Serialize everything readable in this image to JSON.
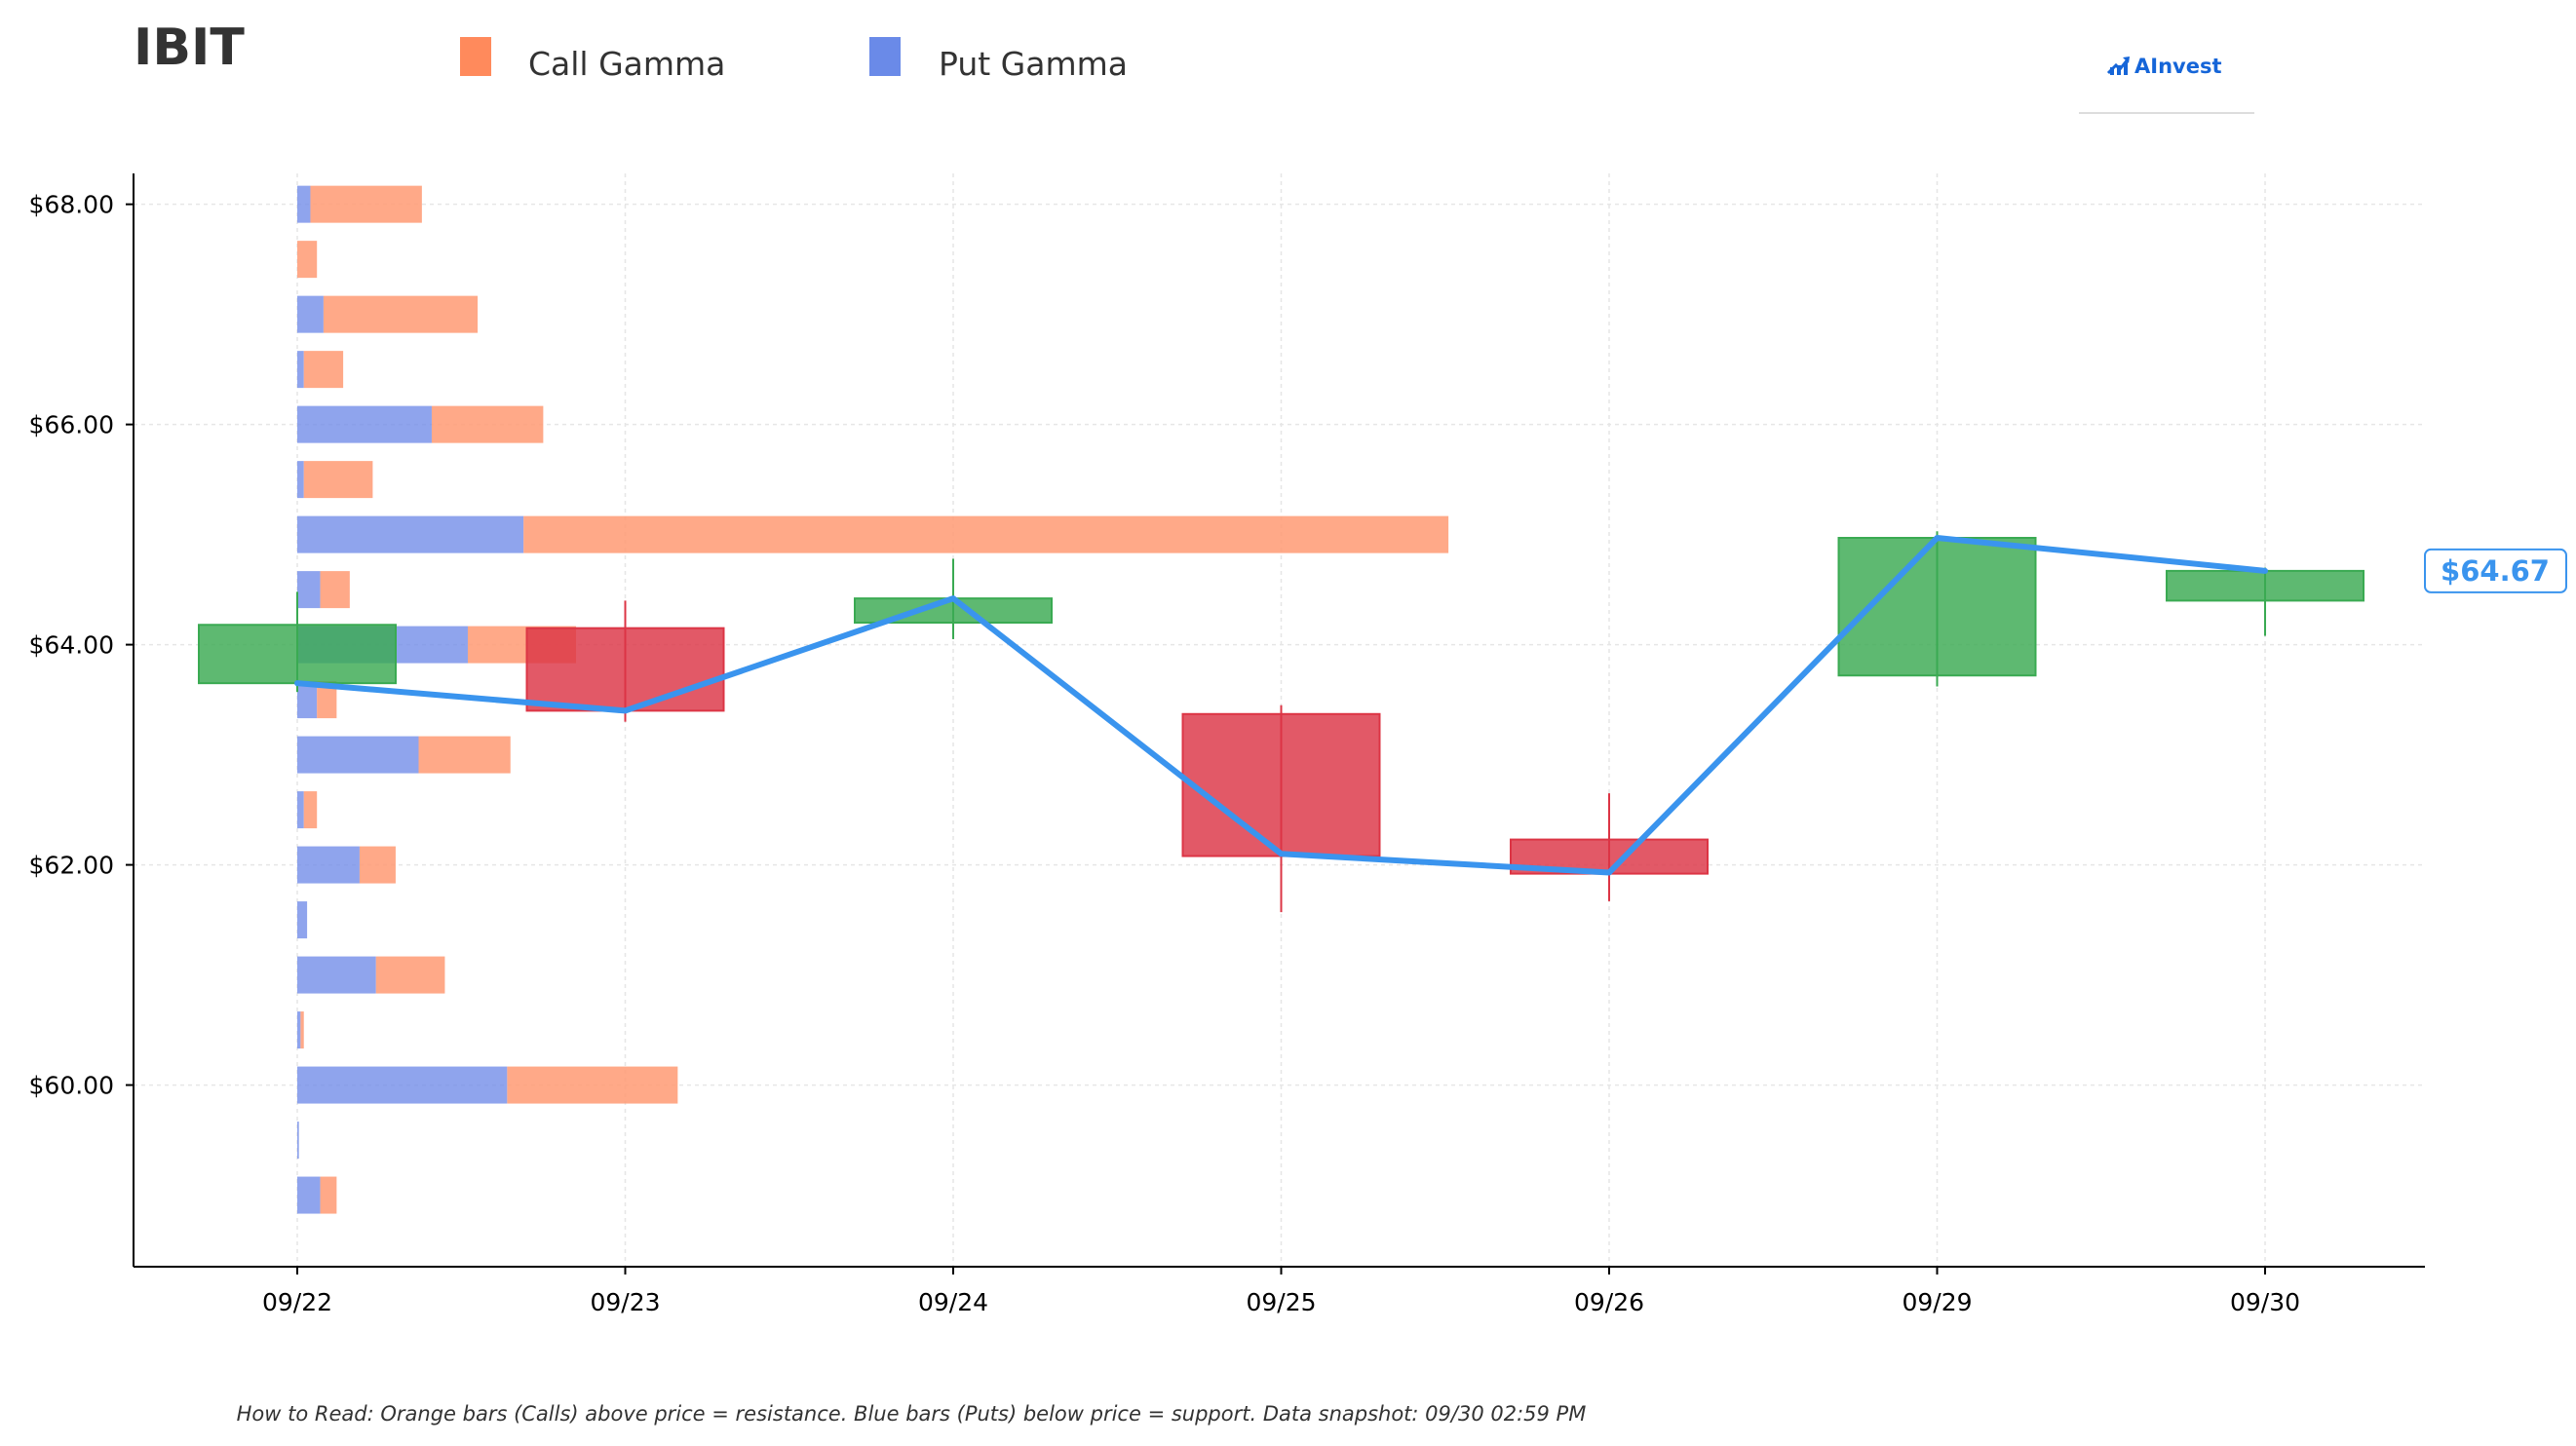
{
  "colors": {
    "call": "#ff9a73",
    "put": "#6f8be8",
    "up": "#3aaa52",
    "down": "#dc3545",
    "price_line": "#3a94ee",
    "axis": "#000000",
    "grid": "#e6e6e6",
    "title": "#333333",
    "logo": "#1565d8"
  },
  "header": {
    "ticker": "IBIT",
    "logo_text": "AInvest",
    "logo_icon": "chart-up-icon"
  },
  "legend": {
    "items": [
      {
        "key": "call",
        "label": "Call Gamma"
      },
      {
        "key": "put",
        "label": "Put Gamma"
      }
    ]
  },
  "footer": {
    "note": "How to Read: Orange bars (Calls) above price = resistance. Blue bars (Puts) below price = support. Data snapshot: 09/30 02:59 PM"
  },
  "chart_data": {
    "type": "candlestick+gamma-bars+line",
    "ylim": [
      58.35,
      68.28
    ],
    "y_ticks": [
      60,
      62,
      64,
      66,
      68
    ],
    "y_tick_labels": [
      "$60.00",
      "$62.00",
      "$64.00",
      "$66.00",
      "$68.00"
    ],
    "x_labels": [
      "09/22",
      "09/23",
      "09/24",
      "09/25",
      "09/26",
      "09/29",
      "09/30"
    ],
    "grid": true,
    "last_price_label": "$64.67",
    "candles": [
      {
        "date": "09/22",
        "open": 63.65,
        "high": 64.48,
        "low": 63.57,
        "close": 64.18
      },
      {
        "date": "09/23",
        "open": 64.15,
        "high": 64.4,
        "low": 63.3,
        "close": 63.4
      },
      {
        "date": "09/24",
        "open": 64.2,
        "high": 64.78,
        "low": 64.05,
        "close": 64.42
      },
      {
        "date": "09/25",
        "open": 63.37,
        "high": 63.45,
        "low": 61.57,
        "close": 62.08
      },
      {
        "date": "09/26",
        "open": 62.23,
        "high": 62.65,
        "low": 61.67,
        "close": 61.92
      },
      {
        "date": "09/29",
        "open": 63.72,
        "high": 65.03,
        "low": 63.62,
        "close": 64.97
      },
      {
        "date": "09/30",
        "open": 64.4,
        "high": 64.7,
        "low": 64.08,
        "close": 64.67
      }
    ],
    "price_line": {
      "x": [
        "09/22",
        "09/23",
        "09/24",
        "09/25",
        "09/26",
        "09/29",
        "09/30"
      ],
      "y": [
        63.65,
        63.4,
        64.42,
        62.1,
        61.93,
        64.97,
        64.67
      ]
    },
    "gamma_bar_units_per_day": 1.0,
    "gamma_bars": [
      {
        "strike": 68.0,
        "put": 0.04,
        "call": 0.34
      },
      {
        "strike": 67.5,
        "put": 0.0,
        "call": 0.06
      },
      {
        "strike": 67.0,
        "put": 0.08,
        "call": 0.47
      },
      {
        "strike": 66.5,
        "put": 0.02,
        "call": 0.12
      },
      {
        "strike": 66.0,
        "put": 0.41,
        "call": 0.34
      },
      {
        "strike": 65.5,
        "put": 0.02,
        "call": 0.21
      },
      {
        "strike": 65.0,
        "put": 0.69,
        "call": 2.82
      },
      {
        "strike": 64.5,
        "put": 0.07,
        "call": 0.09
      },
      {
        "strike": 64.0,
        "put": 0.52,
        "call": 0.33
      },
      {
        "strike": 63.5,
        "put": 0.06,
        "call": 0.06
      },
      {
        "strike": 63.0,
        "put": 0.37,
        "call": 0.28
      },
      {
        "strike": 62.5,
        "put": 0.02,
        "call": 0.04
      },
      {
        "strike": 62.0,
        "put": 0.19,
        "call": 0.11
      },
      {
        "strike": 61.5,
        "put": 0.03,
        "call": 0.0
      },
      {
        "strike": 61.0,
        "put": 0.24,
        "call": 0.21
      },
      {
        "strike": 60.5,
        "put": 0.01,
        "call": 0.01
      },
      {
        "strike": 60.0,
        "put": 0.64,
        "call": 0.52
      },
      {
        "strike": 59.5,
        "put": 0.005,
        "call": 0.0
      },
      {
        "strike": 59.0,
        "put": 0.07,
        "call": 0.05
      }
    ]
  }
}
